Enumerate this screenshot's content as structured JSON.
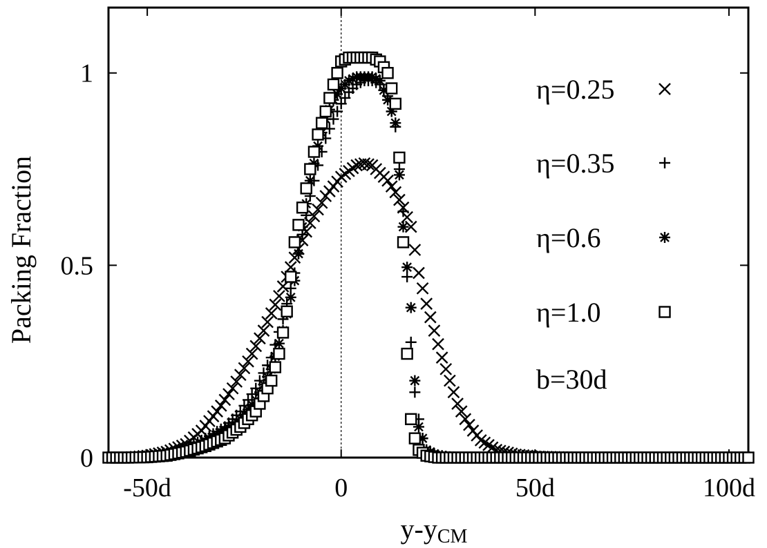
{
  "chart_data": {
    "type": "scatter",
    "title": "",
    "xlabel": {
      "main": "y-y",
      "sub": "CM"
    },
    "ylabel": "Packing Fraction",
    "xlim": [
      -60,
      105
    ],
    "ylim": [
      0,
      1.17
    ],
    "x_ticks": [
      {
        "value": -50,
        "label": "-50d"
      },
      {
        "value": 0,
        "label": "0"
      },
      {
        "value": 50,
        "label": "50d"
      },
      {
        "value": 100,
        "label": "100d"
      }
    ],
    "y_ticks": [
      {
        "value": 0,
        "label": "0"
      },
      {
        "value": 0.5,
        "label": "0.5"
      },
      {
        "value": 1,
        "label": "1"
      }
    ],
    "reference_line_x": 0,
    "legend_position": "right",
    "annotation": "b=30d",
    "series": [
      {
        "name": "η=0.25",
        "marker": "x",
        "points": [
          [
            -60,
            0
          ],
          [
            -55,
            0
          ],
          [
            -50,
            0.005
          ],
          [
            -45,
            0.015
          ],
          [
            -40,
            0.035
          ],
          [
            -36,
            0.07
          ],
          [
            -32,
            0.12
          ],
          [
            -28,
            0.18
          ],
          [
            -24,
            0.25
          ],
          [
            -20,
            0.33
          ],
          [
            -16,
            0.42
          ],
          [
            -12,
            0.52
          ],
          [
            -8,
            0.61
          ],
          [
            -4,
            0.68
          ],
          [
            0,
            0.73
          ],
          [
            4,
            0.76
          ],
          [
            6,
            0.765
          ],
          [
            8,
            0.76
          ],
          [
            10,
            0.74
          ],
          [
            12,
            0.72
          ],
          [
            14,
            0.69
          ],
          [
            16,
            0.65
          ],
          [
            18,
            0.6
          ],
          [
            20,
            0.48
          ],
          [
            22,
            0.4
          ],
          [
            24,
            0.33
          ],
          [
            26,
            0.26
          ],
          [
            28,
            0.2
          ],
          [
            30,
            0.14
          ],
          [
            32,
            0.1
          ],
          [
            34,
            0.07
          ],
          [
            36,
            0.045
          ],
          [
            40,
            0.02
          ],
          [
            45,
            0.008
          ],
          [
            50,
            0.003
          ],
          [
            60,
            0
          ],
          [
            70,
            0
          ],
          [
            80,
            0
          ],
          [
            90,
            0
          ],
          [
            100,
            0
          ],
          [
            105,
            0
          ]
        ]
      },
      {
        "name": "η=0.35",
        "marker": "+",
        "points": [
          [
            -60,
            0
          ],
          [
            -55,
            0
          ],
          [
            -50,
            0.003
          ],
          [
            -45,
            0.01
          ],
          [
            -40,
            0.025
          ],
          [
            -35,
            0.05
          ],
          [
            -30,
            0.08
          ],
          [
            -26,
            0.12
          ],
          [
            -22,
            0.18
          ],
          [
            -18,
            0.26
          ],
          [
            -15,
            0.36
          ],
          [
            -12,
            0.48
          ],
          [
            -10,
            0.58
          ],
          [
            -8,
            0.68
          ],
          [
            -6,
            0.76
          ],
          [
            -4,
            0.83
          ],
          [
            -2,
            0.88
          ],
          [
            0,
            0.92
          ],
          [
            2,
            0.95
          ],
          [
            4,
            0.97
          ],
          [
            6,
            0.98
          ],
          [
            8,
            0.98
          ],
          [
            10,
            0.97
          ],
          [
            12,
            0.94
          ],
          [
            14,
            0.86
          ],
          [
            16,
            0.64
          ],
          [
            18,
            0.3
          ],
          [
            19,
            0.17
          ],
          [
            20,
            0.1
          ],
          [
            21,
            0.05
          ],
          [
            22,
            0.02
          ],
          [
            24,
            0.008
          ],
          [
            28,
            0.002
          ],
          [
            32,
            0
          ],
          [
            40,
            0
          ],
          [
            50,
            0
          ],
          [
            60,
            0
          ],
          [
            70,
            0
          ],
          [
            80,
            0
          ],
          [
            90,
            0
          ],
          [
            100,
            0
          ],
          [
            105,
            0
          ]
        ]
      },
      {
        "name": "η=0.6",
        "marker": "*",
        "points": [
          [
            -60,
            0
          ],
          [
            -55,
            0
          ],
          [
            -50,
            0.002
          ],
          [
            -45,
            0.008
          ],
          [
            -40,
            0.02
          ],
          [
            -35,
            0.04
          ],
          [
            -30,
            0.07
          ],
          [
            -26,
            0.1
          ],
          [
            -22,
            0.15
          ],
          [
            -18,
            0.23
          ],
          [
            -15,
            0.33
          ],
          [
            -12,
            0.46
          ],
          [
            -10,
            0.6
          ],
          [
            -8,
            0.72
          ],
          [
            -6,
            0.81
          ],
          [
            -4,
            0.88
          ],
          [
            -2,
            0.93
          ],
          [
            0,
            0.96
          ],
          [
            2,
            0.98
          ],
          [
            4,
            0.99
          ],
          [
            6,
            0.99
          ],
          [
            8,
            0.99
          ],
          [
            10,
            0.98
          ],
          [
            12,
            0.93
          ],
          [
            14,
            0.87
          ],
          [
            16,
            0.6
          ],
          [
            18,
            0.39
          ],
          [
            19,
            0.2
          ],
          [
            20,
            0.08
          ],
          [
            22,
            0.02
          ],
          [
            25,
            0.005
          ],
          [
            30,
            0
          ],
          [
            40,
            0
          ],
          [
            50,
            0
          ],
          [
            60,
            0
          ],
          [
            70,
            0
          ],
          [
            80,
            0
          ],
          [
            90,
            0
          ],
          [
            100,
            0
          ],
          [
            105,
            0
          ]
        ]
      },
      {
        "name": "η=1.0",
        "marker": "square",
        "points": [
          [
            -60,
            0
          ],
          [
            -55,
            0
          ],
          [
            -50,
            0.001
          ],
          [
            -45,
            0.005
          ],
          [
            -40,
            0.015
          ],
          [
            -35,
            0.03
          ],
          [
            -30,
            0.05
          ],
          [
            -26,
            0.08
          ],
          [
            -22,
            0.12
          ],
          [
            -18,
            0.2
          ],
          [
            -16,
            0.27
          ],
          [
            -14,
            0.38
          ],
          [
            -12,
            0.56
          ],
          [
            -10,
            0.65
          ],
          [
            -8,
            0.75
          ],
          [
            -6,
            0.84
          ],
          [
            -4,
            0.9
          ],
          [
            -2,
            0.97
          ],
          [
            0,
            1.03
          ],
          [
            2,
            1.04
          ],
          [
            4,
            1.04
          ],
          [
            6,
            1.04
          ],
          [
            8,
            1.04
          ],
          [
            10,
            1.03
          ],
          [
            12,
            1.0
          ],
          [
            14,
            0.92
          ],
          [
            15,
            0.78
          ],
          [
            16,
            0.56
          ],
          [
            17,
            0.27
          ],
          [
            18,
            0.1
          ],
          [
            19,
            0.05
          ],
          [
            20,
            0.02
          ],
          [
            22,
            0.005
          ],
          [
            25,
            0
          ],
          [
            30,
            0
          ],
          [
            40,
            0
          ],
          [
            50,
            0
          ],
          [
            60,
            0
          ],
          [
            70,
            0
          ],
          [
            80,
            0
          ],
          [
            90,
            0
          ],
          [
            100,
            0
          ],
          [
            105,
            0
          ]
        ]
      }
    ]
  }
}
